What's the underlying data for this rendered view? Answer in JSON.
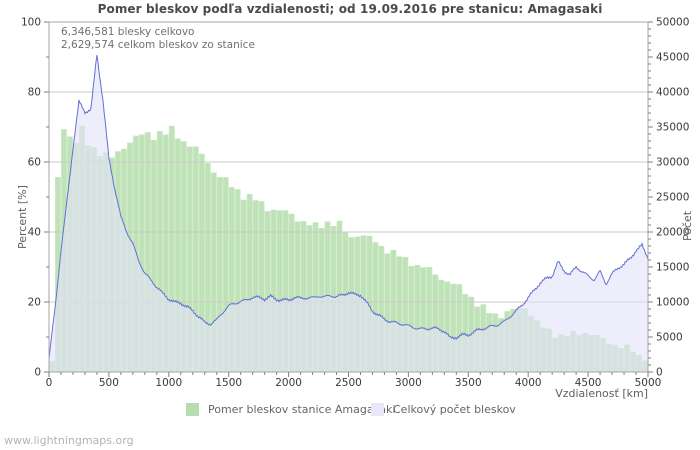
{
  "watermark": "www.lightningmaps.org",
  "chart_data": {
    "type": "area",
    "title": "Pomer bleskov podľa vzdialenosti; od 19.09.2016 pre stanicu: Amagasaki",
    "annotations": [
      "6,346,581 blesky celkovo",
      "2,629,574 celkom bleskov zo stanice"
    ],
    "xlabel": "Vzdialenosť  [km]",
    "ylabel_left": "Percent  [%]",
    "ylabel_right": "Počet",
    "xlim": [
      0,
      5000
    ],
    "ylim_left": [
      0,
      100
    ],
    "ylim_right": [
      0,
      50000
    ],
    "x_tick_step": 500,
    "x_minor_step": 100,
    "y_left_tick_step": 20,
    "y_left_minor_step": 10,
    "y_right_tick_step": 5000,
    "y_right_minor_step": 1000,
    "x_ticks": [
      "0",
      "500",
      "1000",
      "1500",
      "2000",
      "2500",
      "3000",
      "3500",
      "4000",
      "4500",
      "5000"
    ],
    "y_left_ticks": [
      "0",
      "20",
      "40",
      "60",
      "80",
      "100"
    ],
    "y_right_ticks": [
      "0",
      "5000",
      "10000",
      "15000",
      "20000",
      "25000",
      "30000",
      "35000",
      "40000",
      "45000",
      "50000"
    ],
    "grid_percent_lines": [
      20,
      40,
      60,
      80
    ],
    "x_step_km": 50,
    "legend": [
      {
        "label": "Pomer bleskov stanice Amagasaki",
        "color": "#b7dcb0"
      },
      {
        "label": "Celkový počet bleskov",
        "color": "#e7e7f8"
      }
    ],
    "series": [
      {
        "name": "Pomer bleskov stanice Amagasaki",
        "axis": "left",
        "style": "bars",
        "unit": "percent",
        "bar_color": "#c0e2b8",
        "bar_back_color": "#d5edce",
        "values": [
          3,
          55,
          70,
          67.5,
          66,
          69,
          65,
          64,
          63,
          62,
          61,
          62.5,
          64.5,
          66,
          67,
          67.5,
          68,
          67.5,
          68.5,
          68,
          69,
          67.5,
          66,
          65,
          63.5,
          62,
          60,
          57.5,
          56,
          54.5,
          53,
          52,
          50.5,
          50,
          49,
          48,
          47,
          46.5,
          46,
          45.5,
          45,
          44,
          43,
          42,
          41.5,
          42,
          43,
          42.5,
          42,
          40,
          38.5,
          39.5,
          39,
          38,
          37,
          36,
          35,
          34,
          33,
          32,
          31.5,
          30.5,
          30,
          29,
          28,
          27,
          26,
          25,
          24,
          23,
          21.5,
          19.5,
          18,
          17,
          16.5,
          16.5,
          17,
          17.5,
          18,
          18.5,
          17,
          14,
          12.5,
          11.5,
          11,
          10.5,
          10.5,
          10.5,
          11,
          11.5,
          11,
          10,
          9,
          8.5,
          8,
          7.5,
          6.5,
          6,
          4.5,
          3.5,
          2.5
        ]
      },
      {
        "name": "Celkový počet bleskov",
        "axis": "right",
        "style": "area-line",
        "unit": "count",
        "fill_color": "rgba(226,226,248,0.62)",
        "line_color": "#6470d4",
        "values": [
          1800,
          9000,
          17500,
          24500,
          32000,
          38500,
          37000,
          37500,
          45500,
          39000,
          30500,
          26000,
          22000,
          20000,
          18400,
          16000,
          14100,
          13000,
          12000,
          11200,
          10550,
          10100,
          9850,
          9200,
          8600,
          7900,
          7200,
          7000,
          7430,
          8400,
          9300,
          9800,
          10200,
          10400,
          10700,
          10500,
          10300,
          10800,
          10500,
          10400,
          10300,
          10500,
          10400,
          10600,
          10700,
          11000,
          10700,
          10800,
          10600,
          11000,
          11500,
          11200,
          11000,
          9800,
          8600,
          8100,
          7700,
          7300,
          7000,
          6700,
          6450,
          6350,
          6280,
          6300,
          6280,
          6000,
          5700,
          4850,
          5100,
          5400,
          5300,
          5600,
          6000,
          6300,
          6700,
          6900,
          7150,
          7800,
          8600,
          9600,
          10750,
          11800,
          12700,
          13200,
          13600,
          15750,
          14600,
          14000,
          15000,
          14200,
          13600,
          13200,
          14500,
          12700,
          14000,
          14700,
          15300,
          16200,
          17500,
          18200,
          16300
        ]
      }
    ],
    "colors": {
      "grid": "#c9c9c9",
      "frame": "#a6a6a6",
      "tick": "#808080",
      "tick_label": "#3a3a3a"
    }
  }
}
